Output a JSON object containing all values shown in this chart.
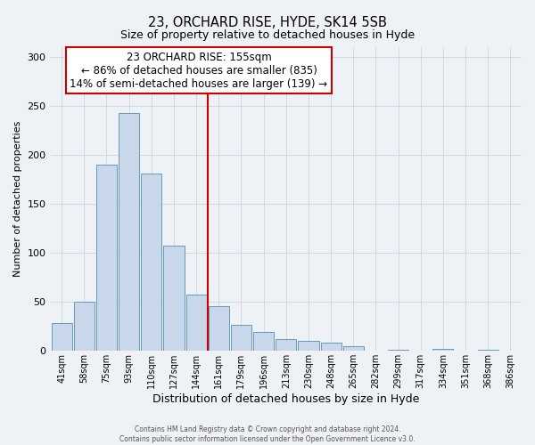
{
  "title1": "23, ORCHARD RISE, HYDE, SK14 5SB",
  "title2": "Size of property relative to detached houses in Hyde",
  "xlabel": "Distribution of detached houses by size in Hyde",
  "ylabel": "Number of detached properties",
  "bar_labels": [
    "41sqm",
    "58sqm",
    "75sqm",
    "93sqm",
    "110sqm",
    "127sqm",
    "144sqm",
    "161sqm",
    "179sqm",
    "196sqm",
    "213sqm",
    "230sqm",
    "248sqm",
    "265sqm",
    "282sqm",
    "299sqm",
    "317sqm",
    "334sqm",
    "351sqm",
    "368sqm",
    "386sqm"
  ],
  "bar_values": [
    28,
    50,
    190,
    242,
    181,
    107,
    57,
    46,
    27,
    19,
    12,
    10,
    8,
    5,
    0,
    1,
    0,
    2,
    0,
    1,
    0
  ],
  "bar_color": "#c8d8ea",
  "bar_edge_color": "#6699bb",
  "vline_index": 7,
  "vline_color": "#cc0000",
  "annotation_title": "23 ORCHARD RISE: 155sqm",
  "annotation_line1": "← 86% of detached houses are smaller (835)",
  "annotation_line2": "14% of semi-detached houses are larger (139) →",
  "annotation_box_color": "#ffffff",
  "annotation_box_edge": "#cc0000",
  "ylim": [
    0,
    310
  ],
  "yticks": [
    0,
    50,
    100,
    150,
    200,
    250,
    300
  ],
  "grid_color": "#d0d8e0",
  "bg_color": "#eef2f7",
  "footer1": "Contains HM Land Registry data © Crown copyright and database right 2024.",
  "footer2": "Contains public sector information licensed under the Open Government Licence v3.0."
}
